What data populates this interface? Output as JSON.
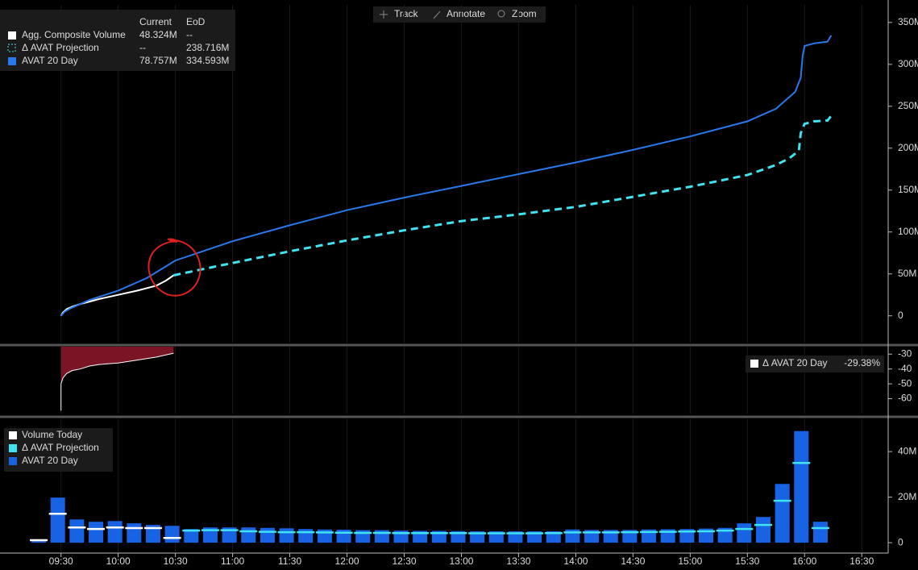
{
  "toolbar": [
    "Track",
    "Annotate",
    "Zoom"
  ],
  "chart_data": [
    {
      "type": "line",
      "legend_headers": [
        "Current",
        "EoD"
      ],
      "xlim": [
        "08:58",
        "16:43"
      ],
      "ylim": [
        -32,
        371
      ],
      "yticks": [
        {
          "value": 0,
          "label": "0"
        },
        {
          "value": 50,
          "label": "50M"
        },
        {
          "value": 100,
          "label": "100M"
        },
        {
          "value": 150,
          "label": "150M"
        },
        {
          "value": 200,
          "label": "200M"
        },
        {
          "value": 250,
          "label": "250M"
        },
        {
          "value": 300,
          "label": "300M"
        },
        {
          "value": 350,
          "label": "350M"
        }
      ],
      "series": [
        {
          "name": "Agg. Composite Volume",
          "current": "48.324M",
          "eod": "--",
          "color": "#ffffff",
          "style": "solid",
          "x": [
            "09:30",
            "09:31",
            "09:33",
            "09:36",
            "09:40",
            "09:45",
            "09:50",
            "10:00",
            "10:10",
            "10:20",
            "10:25",
            "10:29"
          ],
          "values": [
            0,
            4,
            8,
            11,
            14,
            17,
            20,
            25,
            30,
            36,
            42,
            48.324
          ]
        },
        {
          "name": "Δ AVAT Projection",
          "current": "--",
          "eod": "238.716M",
          "color": "#3fe3f2",
          "style": "dashed",
          "x": [
            "10:29",
            "10:45",
            "11:00",
            "11:30",
            "12:00",
            "12:30",
            "13:00",
            "13:30",
            "14:00",
            "14:30",
            "15:00",
            "15:30",
            "15:45",
            "15:52",
            "15:57",
            "15:58",
            "16:00",
            "16:05",
            "16:12",
            "16:14"
          ],
          "values": [
            48.324,
            56,
            63,
            77,
            90,
            102,
            113,
            121,
            130,
            142,
            154,
            168,
            180,
            188,
            197,
            218,
            229,
            232,
            233,
            238.716
          ]
        },
        {
          "name": "AVAT 20 Day",
          "current": "78.757M",
          "eod": "334.593M",
          "color": "#2a78ee",
          "style": "solid",
          "x": [
            "09:30",
            "09:32",
            "09:35",
            "09:40",
            "09:45",
            "10:00",
            "10:15",
            "10:30",
            "11:00",
            "11:30",
            "12:00",
            "12:30",
            "13:00",
            "13:30",
            "14:00",
            "14:30",
            "15:00",
            "15:30",
            "15:45",
            "15:50",
            "15:55",
            "15:58",
            "15:59",
            "16:00",
            "16:05",
            "16:12",
            "16:14"
          ],
          "values": [
            0,
            5,
            9,
            14,
            19,
            30,
            45,
            66,
            89,
            108,
            126,
            141,
            155,
            169,
            183,
            198,
            214,
            232,
            247,
            257,
            267,
            284,
            310,
            322,
            325,
            327,
            334.593
          ]
        }
      ]
    },
    {
      "type": "area",
      "xlim": [
        "08:58",
        "16:43"
      ],
      "ylim": [
        -70,
        -25
      ],
      "yticks": [
        -30,
        -40,
        -50,
        -60
      ],
      "series": [
        {
          "name": "Δ AVAT 20 Day",
          "color": "#7a1526",
          "line_color": "#ffffff",
          "x": [
            "09:30",
            "09:30",
            "09:31",
            "09:33",
            "09:36",
            "09:40",
            "09:45",
            "09:50",
            "10:00",
            "10:10",
            "10:20",
            "10:29"
          ],
          "values": [
            -68,
            -50,
            -46,
            -43,
            -41,
            -40,
            -38,
            -37,
            -36,
            -34,
            -32,
            -29.38
          ],
          "value_labels": [
            null,
            null,
            null,
            null,
            null,
            null,
            null,
            null,
            null,
            null,
            null,
            "-29.38%"
          ]
        }
      ]
    },
    {
      "type": "bar",
      "xlim": [
        "08:58",
        "16:43"
      ],
      "ylim": [
        -4.2,
        54.2
      ],
      "xticks": [
        "09:30",
        "10:00",
        "10:30",
        "11:00",
        "11:30",
        "12:00",
        "12:30",
        "13:00",
        "13:30",
        "14:00",
        "14:30",
        "15:00",
        "15:30",
        "16:00",
        "16:30"
      ],
      "yticks": [
        {
          "value": 0,
          "label": "0"
        },
        {
          "value": 20,
          "label": "20M"
        },
        {
          "value": 40,
          "label": "40M"
        }
      ],
      "categories": [
        "09:20",
        "09:30",
        "09:40",
        "09:50",
        "10:00",
        "10:10",
        "10:20",
        "10:30",
        "10:40",
        "10:50",
        "11:00",
        "11:10",
        "11:20",
        "11:30",
        "11:40",
        "11:50",
        "12:00",
        "12:10",
        "12:20",
        "12:30",
        "12:40",
        "12:50",
        "13:00",
        "13:10",
        "13:20",
        "13:30",
        "13:40",
        "13:50",
        "14:00",
        "14:10",
        "14:20",
        "14:30",
        "14:40",
        "14:50",
        "15:00",
        "15:10",
        "15:20",
        "15:30",
        "15:40",
        "15:50",
        "16:00",
        "16:10"
      ],
      "series": [
        {
          "name": "Volume Today",
          "color": "#ffffff",
          "mark": "dash",
          "values": [
            1.1,
            12.7,
            6.7,
            6.0,
            6.7,
            6.4,
            6.4,
            2.1,
            null,
            null,
            null,
            null,
            null,
            null,
            null,
            null,
            null,
            null,
            null,
            null,
            null,
            null,
            null,
            null,
            null,
            null,
            null,
            null,
            null,
            null,
            null,
            null,
            null,
            null,
            null,
            null,
            null,
            null,
            null,
            null,
            null,
            null
          ]
        },
        {
          "name": "Δ AVAT Projection",
          "color": "#3fe3f2",
          "mark": "dash",
          "values": [
            null,
            null,
            null,
            null,
            null,
            null,
            null,
            null,
            5.3,
            5.5,
            5.5,
            5.0,
            4.8,
            4.6,
            4.6,
            4.5,
            4.4,
            4.3,
            4.3,
            4.2,
            4.2,
            4.2,
            4.2,
            4.1,
            4.1,
            4.1,
            4.1,
            4.2,
            4.5,
            4.5,
            4.5,
            4.6,
            4.7,
            4.8,
            4.9,
            5.0,
            5.3,
            6.0,
            7.8,
            18.4,
            35.0,
            6.4
          ]
        },
        {
          "name": "AVAT 20 Day",
          "color": "#1763e3",
          "mark": "bar",
          "values": [
            1.4,
            19.8,
            10.2,
            9.2,
            9.5,
            8.5,
            7.8,
            7.4,
            6.0,
            6.7,
            6.7,
            6.7,
            6.5,
            6.3,
            6.0,
            5.8,
            5.7,
            5.5,
            5.5,
            5.3,
            5.2,
            5.2,
            5.1,
            5.0,
            5.0,
            5.0,
            5.0,
            5.0,
            5.8,
            5.6,
            5.6,
            5.6,
            5.8,
            5.9,
            6.0,
            6.2,
            6.5,
            8.5,
            11.3,
            25.8,
            49.0,
            9.2
          ]
        }
      ]
    }
  ]
}
